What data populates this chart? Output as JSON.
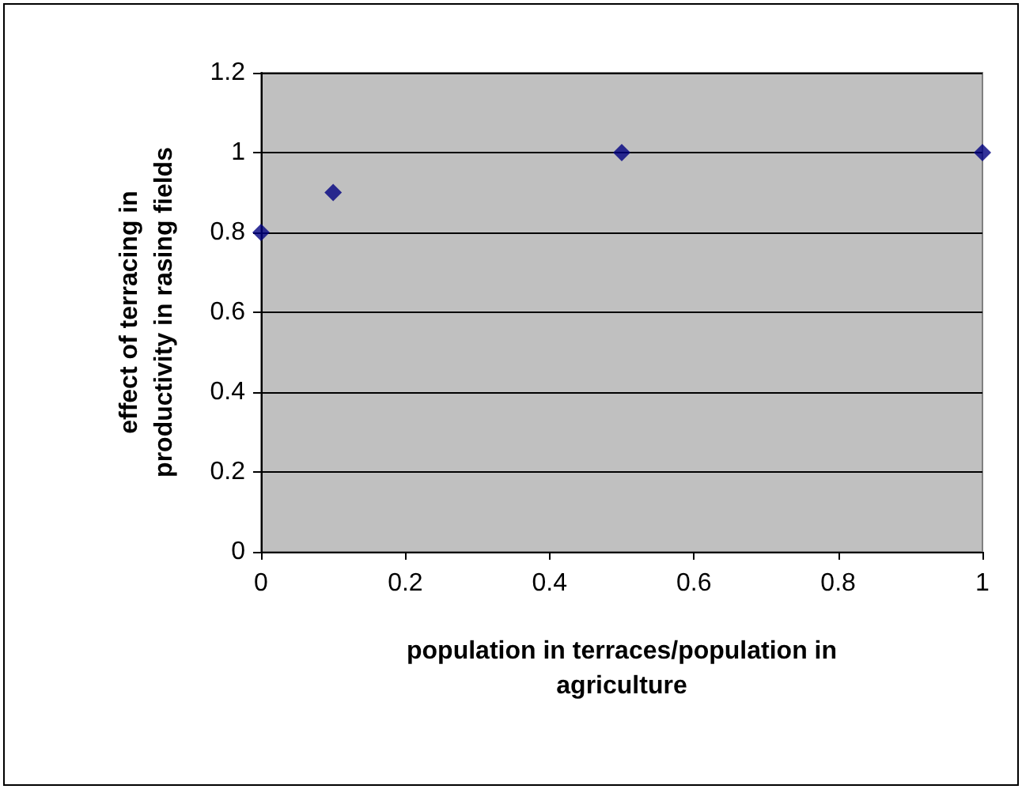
{
  "chart_data": {
    "type": "scatter",
    "xlabel": "population in terraces/population in agriculture",
    "ylabel": "effect of terracing in productivity in rasing fields",
    "x": [
      0,
      0.1,
      0.5,
      1
    ],
    "series": [
      {
        "color": "#000080",
        "values": [
          0.8,
          0.9,
          1,
          1
        ]
      }
    ],
    "xlim": [
      0,
      1
    ],
    "xticks": [
      0,
      0.2,
      0.4,
      0.6,
      0.8,
      1
    ],
    "ylim": [
      0,
      1.2
    ],
    "yticks": [
      0,
      0.2,
      0.4,
      0.6,
      0.8,
      1,
      1.2
    ],
    "grid": "y",
    "marker": "diamond"
  }
}
